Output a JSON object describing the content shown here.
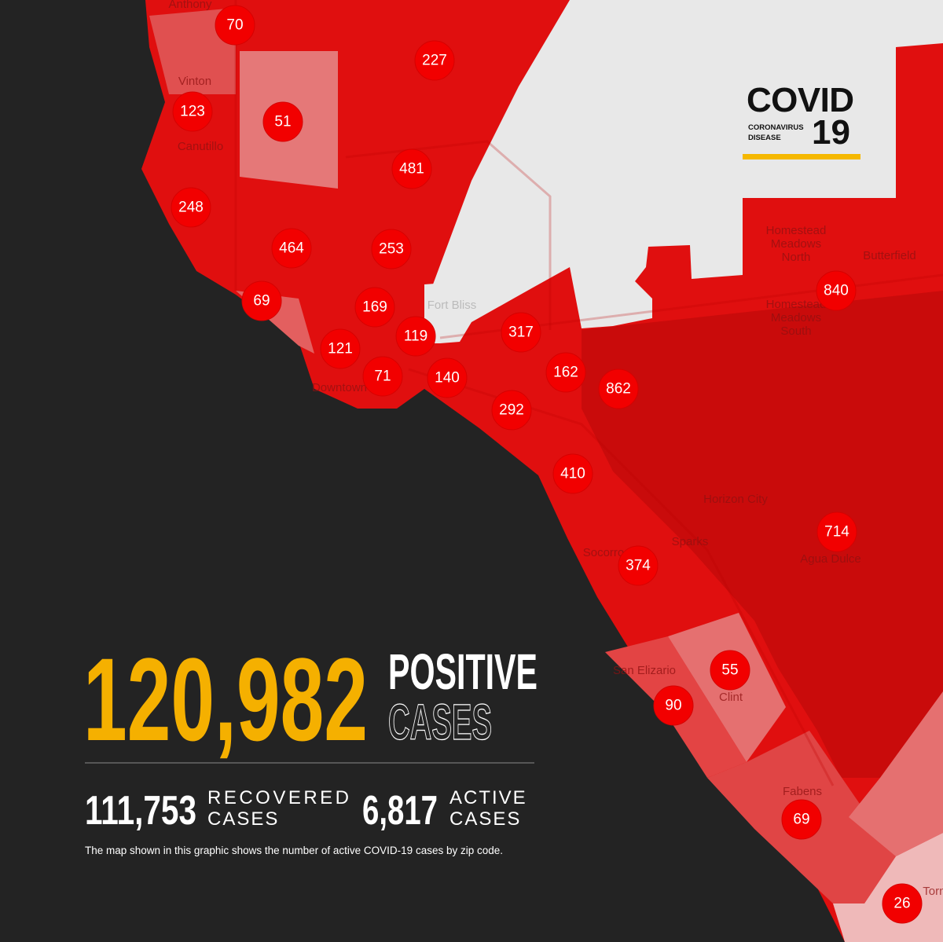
{
  "logo": {
    "word": "COVID",
    "line1": "CORONAVIRUS",
    "line2": "DISEASE",
    "number": "19"
  },
  "places": [
    {
      "lines": [
        "Anthony"
      ]
    },
    {
      "lines": [
        "Vinton"
      ]
    },
    {
      "lines": [
        "Canutillo"
      ]
    },
    {
      "lines": [
        "Fort Bliss"
      ]
    },
    {
      "lines": [
        "Downtown"
      ]
    },
    {
      "lines": [
        "Homestead",
        "Meadows",
        "North"
      ]
    },
    {
      "lines": [
        "Butterfield"
      ]
    },
    {
      "lines": [
        "Homestead",
        "Meadows",
        "South"
      ]
    },
    {
      "lines": [
        "Horizon City"
      ]
    },
    {
      "lines": [
        "Sparks"
      ]
    },
    {
      "lines": [
        "Agua Dulce"
      ]
    },
    {
      "lines": [
        "Socorro"
      ]
    },
    {
      "lines": [
        "San Elizario"
      ]
    },
    {
      "lines": [
        "Clint"
      ]
    },
    {
      "lines": [
        "Fabens"
      ]
    },
    {
      "lines": [
        "Tornillo"
      ]
    }
  ],
  "zip_counts": [
    70,
    227,
    123,
    51,
    481,
    248,
    464,
    253,
    840,
    69,
    169,
    119,
    317,
    121,
    71,
    140,
    162,
    862,
    292,
    410,
    714,
    374,
    55,
    90,
    69,
    26
  ],
  "stats": {
    "positive": {
      "value": "120,982",
      "line1": "POSITIVE",
      "line2": "CASES"
    },
    "recovered": {
      "value": "111,753",
      "line1": "RECOVERED",
      "line2": "CASES"
    },
    "active": {
      "value": "6,817",
      "line1": "ACTIVE",
      "line2": "CASES"
    }
  },
  "footnote": "The map shown in this graphic shows the number of active COVID-19 cases by zip code."
}
